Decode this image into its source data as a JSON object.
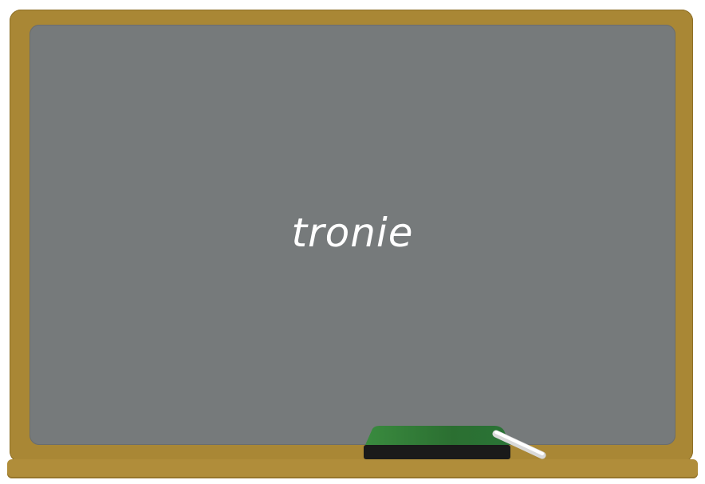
{
  "board": {
    "word": "tronie"
  },
  "colors": {
    "frame": "#a98735",
    "board": "#767a7b",
    "chalk_text": "#ffffff",
    "eraser_top": "#2f7a38",
    "eraser_base": "#1a1a1a"
  },
  "icons": {
    "eraser": "eraser-icon",
    "chalk": "chalk-icon"
  }
}
